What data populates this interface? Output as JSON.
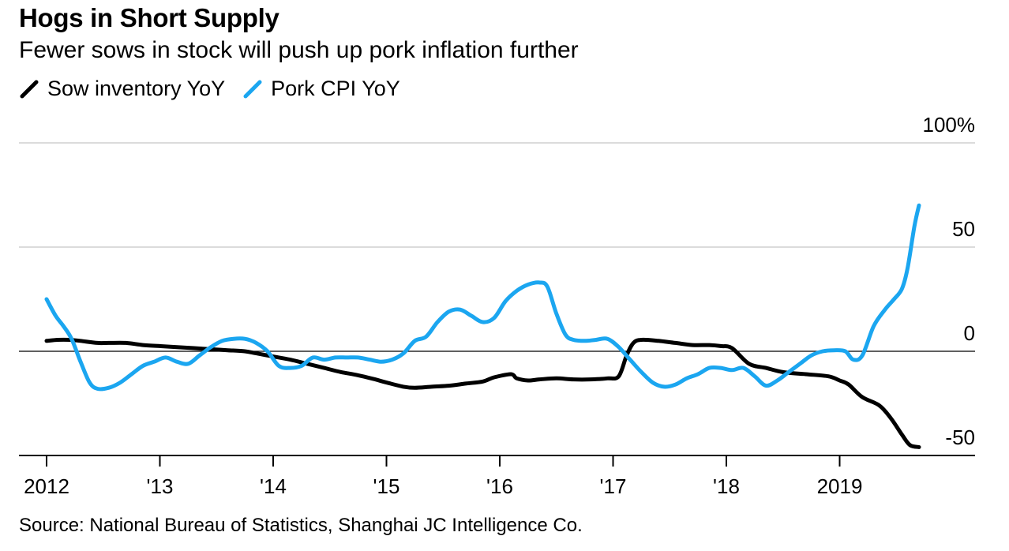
{
  "chart_data": {
    "type": "line",
    "title": "Hogs in Short Supply",
    "subtitle": "Fewer sows in stock will push up pork inflation further",
    "source": "Source: National Bureau of Statistics, Shanghai JC Intelligence Co.",
    "ylim": [
      -50,
      100
    ],
    "yticks": [
      -50,
      0,
      50,
      100
    ],
    "ytick_labels": [
      "-50",
      "0",
      "50",
      "100%"
    ],
    "xlim": [
      2012,
      2020
    ],
    "xticks": [
      2012,
      2013,
      2014,
      2015,
      2016,
      2017,
      2018,
      2019
    ],
    "xtick_labels": [
      "2012",
      "'13",
      "'14",
      "'15",
      "'16",
      "'17",
      "'18",
      "2019"
    ],
    "xlabel": "",
    "ylabel": "",
    "legend": "top-left",
    "series": [
      {
        "name": "Sow inventory YoY",
        "color": "#000000",
        "x": [
          2012.0,
          2012.1,
          2012.2,
          2012.3,
          2012.45,
          2012.55,
          2012.7,
          2012.85,
          2013.0,
          2013.15,
          2013.3,
          2013.45,
          2013.6,
          2013.75,
          2013.85,
          2014.0,
          2014.15,
          2014.3,
          2014.45,
          2014.6,
          2014.75,
          2014.9,
          2015.0,
          2015.15,
          2015.25,
          2015.4,
          2015.55,
          2015.7,
          2015.85,
          2015.95,
          2016.1,
          2016.15,
          2016.25,
          2016.35,
          2016.5,
          2016.65,
          2016.8,
          2016.95,
          2017.05,
          2017.12,
          2017.18,
          2017.25,
          2017.4,
          2017.55,
          2017.7,
          2017.85,
          2017.95,
          2018.05,
          2018.2,
          2018.35,
          2018.5,
          2018.7,
          2018.9,
          2019.0,
          2019.08,
          2019.2,
          2019.35,
          2019.45,
          2019.55,
          2019.62,
          2019.7
        ],
        "values": [
          5,
          5.5,
          5.5,
          5,
          4,
          4,
          4,
          3,
          2.5,
          2,
          1.5,
          1,
          0.5,
          0,
          -1,
          -2.5,
          -4,
          -6,
          -8,
          -10,
          -11.5,
          -13.5,
          -15,
          -17,
          -17.5,
          -17,
          -16.5,
          -15.5,
          -14.5,
          -12.5,
          -11,
          -13,
          -14,
          -13.5,
          -13,
          -13.5,
          -13.5,
          -13,
          -12,
          -2,
          4,
          5.5,
          5,
          4,
          3,
          3,
          2.5,
          1.5,
          -6,
          -8,
          -10,
          -11,
          -12,
          -14,
          -16,
          -22,
          -26,
          -32,
          -40,
          -45,
          -46
        ]
      },
      {
        "name": "Pork CPI YoY",
        "color": "#1BA6F0",
        "x": [
          2012.0,
          2012.08,
          2012.15,
          2012.22,
          2012.3,
          2012.38,
          2012.45,
          2012.55,
          2012.65,
          2012.75,
          2012.85,
          2012.95,
          2013.05,
          2013.15,
          2013.25,
          2013.35,
          2013.45,
          2013.55,
          2013.65,
          2013.75,
          2013.85,
          2013.95,
          2014.05,
          2014.15,
          2014.25,
          2014.35,
          2014.45,
          2014.55,
          2014.65,
          2014.75,
          2014.85,
          2014.95,
          2015.05,
          2015.15,
          2015.25,
          2015.35,
          2015.45,
          2015.55,
          2015.65,
          2015.75,
          2015.85,
          2015.95,
          2016.05,
          2016.15,
          2016.25,
          2016.35,
          2016.42,
          2016.5,
          2016.58,
          2016.65,
          2016.75,
          2016.85,
          2016.95,
          2017.05,
          2017.15,
          2017.25,
          2017.35,
          2017.45,
          2017.55,
          2017.65,
          2017.75,
          2017.85,
          2017.95,
          2018.05,
          2018.15,
          2018.25,
          2018.35,
          2018.45,
          2018.55,
          2018.65,
          2018.75,
          2018.85,
          2018.95,
          2019.05,
          2019.12,
          2019.2,
          2019.3,
          2019.4,
          2019.48,
          2019.55,
          2019.6,
          2019.66,
          2019.7
        ],
        "values": [
          25,
          17,
          12,
          6,
          -5,
          -15,
          -18,
          -17.5,
          -15,
          -11,
          -7,
          -5,
          -3,
          -5,
          -6,
          -2,
          2,
          5,
          6,
          6,
          4,
          0,
          -7,
          -8,
          -7,
          -3,
          -4,
          -3,
          -3,
          -3,
          -4,
          -5,
          -4,
          -1,
          5,
          7,
          14,
          19,
          20,
          17,
          14,
          16,
          24,
          29,
          32,
          33,
          31,
          18,
          8,
          5.5,
          5,
          5.5,
          6,
          2,
          -4,
          -10,
          -15,
          -17,
          -16,
          -13,
          -11,
          -8,
          -8,
          -9,
          -8,
          -12,
          -16.5,
          -14,
          -10,
          -6,
          -2,
          0,
          0.5,
          0,
          -4,
          -2,
          12,
          20,
          25,
          30,
          40,
          60,
          70
        ]
      }
    ]
  }
}
